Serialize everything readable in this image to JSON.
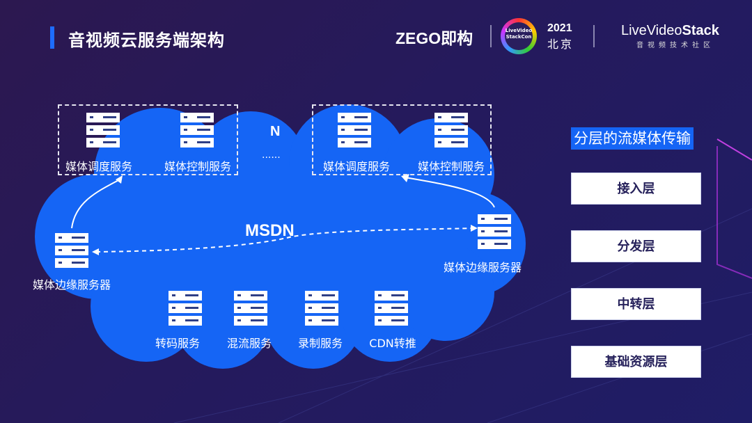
{
  "title": "音视频云服务端架构",
  "header": {
    "zego": "ZEGO即构",
    "conf_badge": "LiveVideo StackCon",
    "year": "2021",
    "city": "北京",
    "lvs_light": "LiveVideo",
    "lvs_bold": "Stack",
    "lvs_sub": "音视频技术社区"
  },
  "colors": {
    "cloud": "#1565f5",
    "accent": "#1e6cff",
    "background": "#251a5c"
  },
  "diagram": {
    "group_left": [
      "媒体调度服务",
      "媒体控制服务"
    ],
    "group_right": [
      "媒体调度服务",
      "媒体控制服务"
    ],
    "n_label": "N",
    "ellipsis": "......",
    "network": "MSDN",
    "edge_left": "媒体边缘服务器",
    "edge_right": "媒体边缘服务器",
    "bottom": [
      "转码服务",
      "混流服务",
      "录制服务",
      "CDN转推"
    ]
  },
  "layers": {
    "title": "分层的流媒体传输",
    "items": [
      "接入层",
      "分发层",
      "中转层",
      "基础资源层"
    ]
  }
}
